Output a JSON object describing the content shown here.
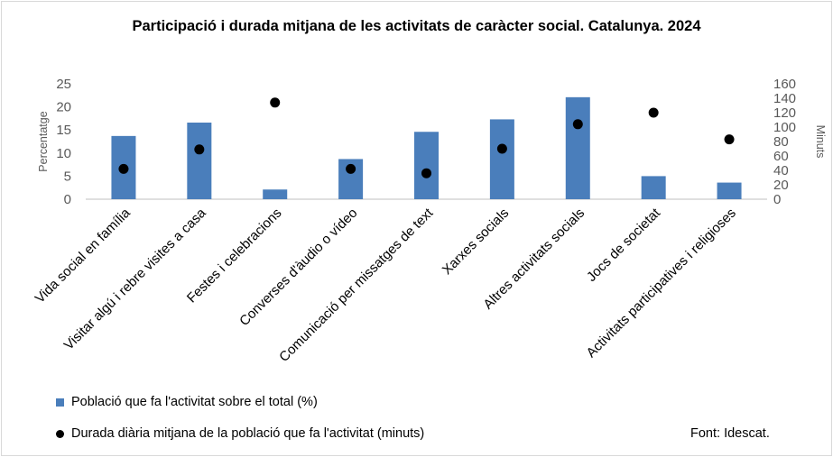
{
  "chart_data": {
    "type": "bar",
    "title": "Participació i durada mitjana de les activitats de caràcter social. Catalunya. 2024",
    "categories": [
      "Vida social en família",
      "Visitar algú i rebre visites a casa",
      "Festes i celebracions",
      "Converses d'àudio o vídeo",
      "Comunicació per missatges de text",
      "Xarxes socials",
      "Altres activitats socials",
      "Jocs de societat",
      "Activitats participatives i religioses"
    ],
    "series": [
      {
        "name": "Població que fa l'activitat sobre el total (%)",
        "type": "bar",
        "axis": "left",
        "values": [
          13.7,
          16.6,
          2.1,
          8.7,
          14.6,
          17.3,
          22.1,
          5.0,
          3.6
        ]
      },
      {
        "name": "Durada diària mitjana de la població que fa l'activitat (minuts)",
        "type": "scatter",
        "axis": "right",
        "values": [
          42,
          69,
          134,
          42,
          36,
          70,
          104,
          120,
          83
        ]
      }
    ],
    "ylabel": "Percentatge",
    "ylim": [
      0,
      25
    ],
    "yticks": [
      0,
      5,
      10,
      15,
      20,
      25
    ],
    "y2label": "Minuts",
    "y2lim": [
      0,
      160
    ],
    "y2ticks": [
      0,
      20,
      40,
      60,
      80,
      100,
      120,
      140,
      160
    ],
    "grid": false,
    "legend_position": "bottom-left",
    "colors": {
      "bar": "#4a7ebb",
      "dot": "#000000"
    }
  },
  "source": "Font: Idescat."
}
